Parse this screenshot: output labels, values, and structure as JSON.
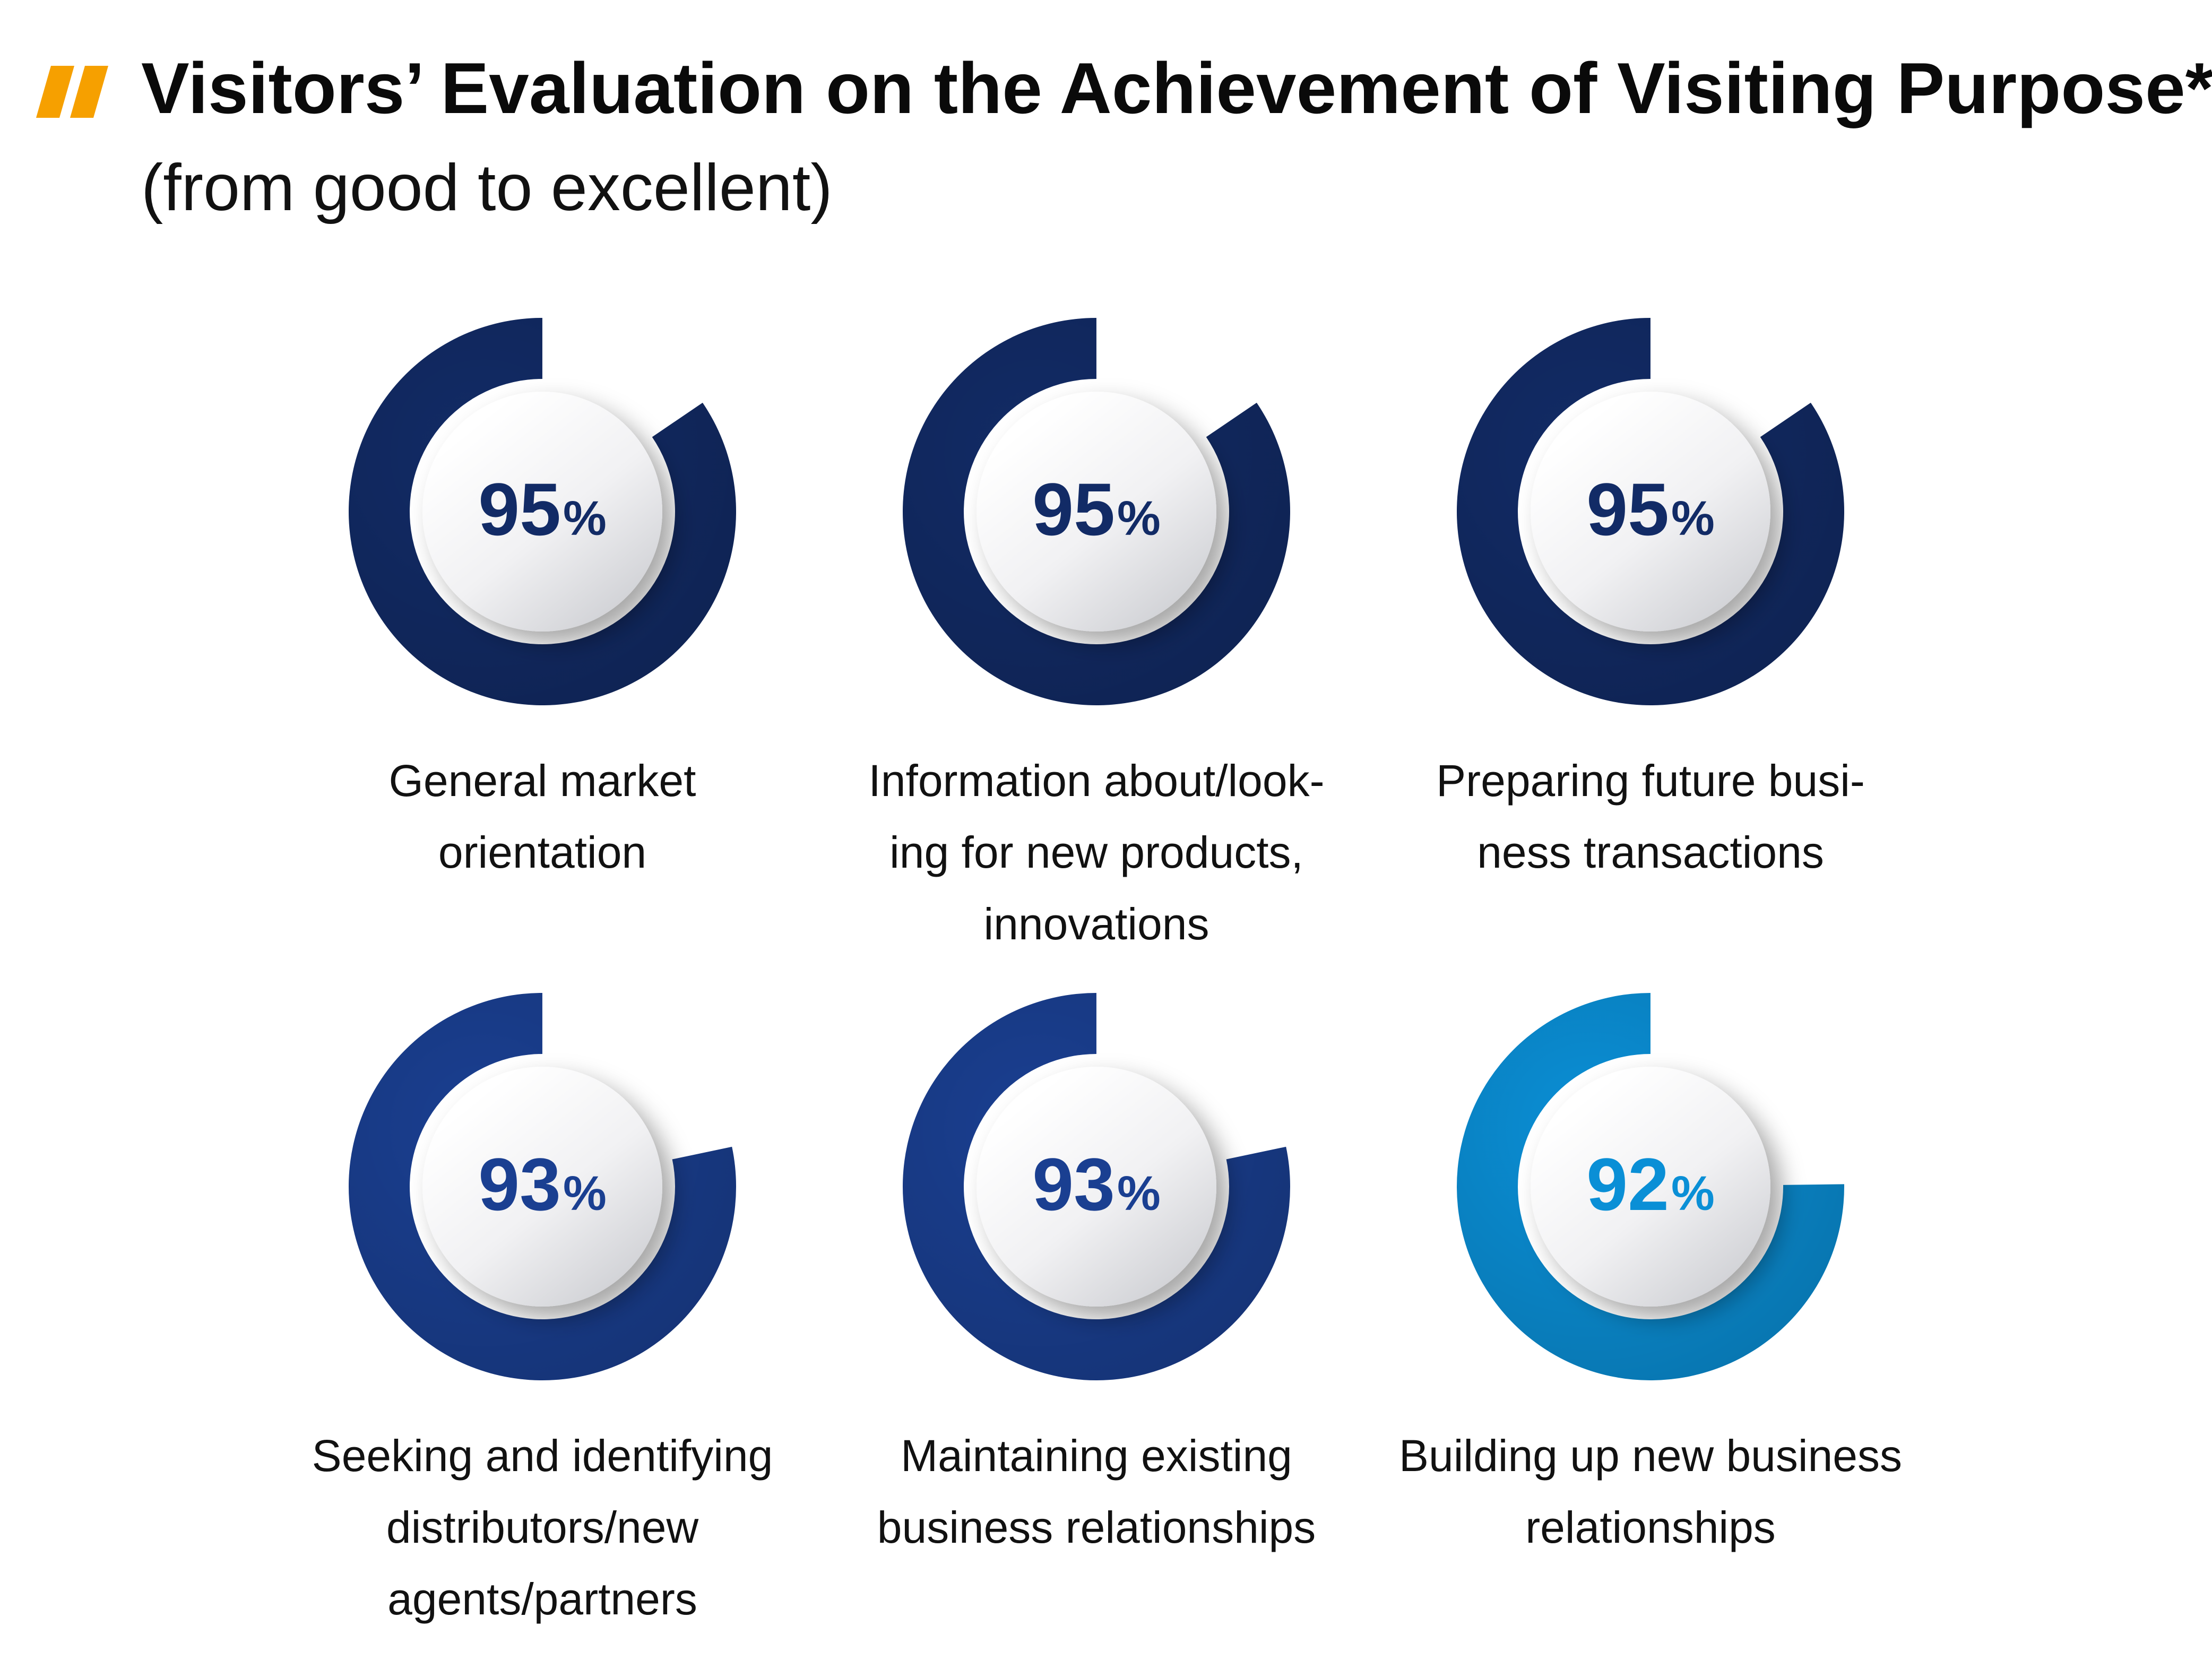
{
  "title": "Visitors’ Evaluation on the Achievement of Visiting Purpose*",
  "subtitle": "(from good to excellent)",
  "colors": {
    "quote_mark": "#F6A000",
    "navy": "#122B66",
    "blue": "#1A3F91",
    "light_blue": "#0A8FD6",
    "disc_light": "#FFFFFF",
    "disc_dark": "#D3D4D8"
  },
  "chart_data": {
    "type": "donut",
    "unit": "%",
    "items": [
      {
        "value": 95,
        "value_label": "95",
        "label_lines": [
          "General market",
          "orientation"
        ],
        "color_key": "navy"
      },
      {
        "value": 95,
        "value_label": "95",
        "label_lines": [
          "Information about/look-",
          "ing for new products,",
          "innovations"
        ],
        "color_key": "navy"
      },
      {
        "value": 95,
        "value_label": "95",
        "label_lines": [
          "Preparing future busi-",
          "ness transactions"
        ],
        "color_key": "navy"
      },
      {
        "value": 93,
        "value_label": "93",
        "label_lines": [
          "Seeking and identifying",
          "distributors/new",
          "agents/partners"
        ],
        "color_key": "blue"
      },
      {
        "value": 93,
        "value_label": "93",
        "label_lines": [
          "Maintaining existing",
          "business relationships"
        ],
        "color_key": "blue"
      },
      {
        "value": 92,
        "value_label": "92",
        "label_lines": [
          "Building up new business",
          "relationships"
        ],
        "color_key": "light_blue"
      }
    ]
  }
}
